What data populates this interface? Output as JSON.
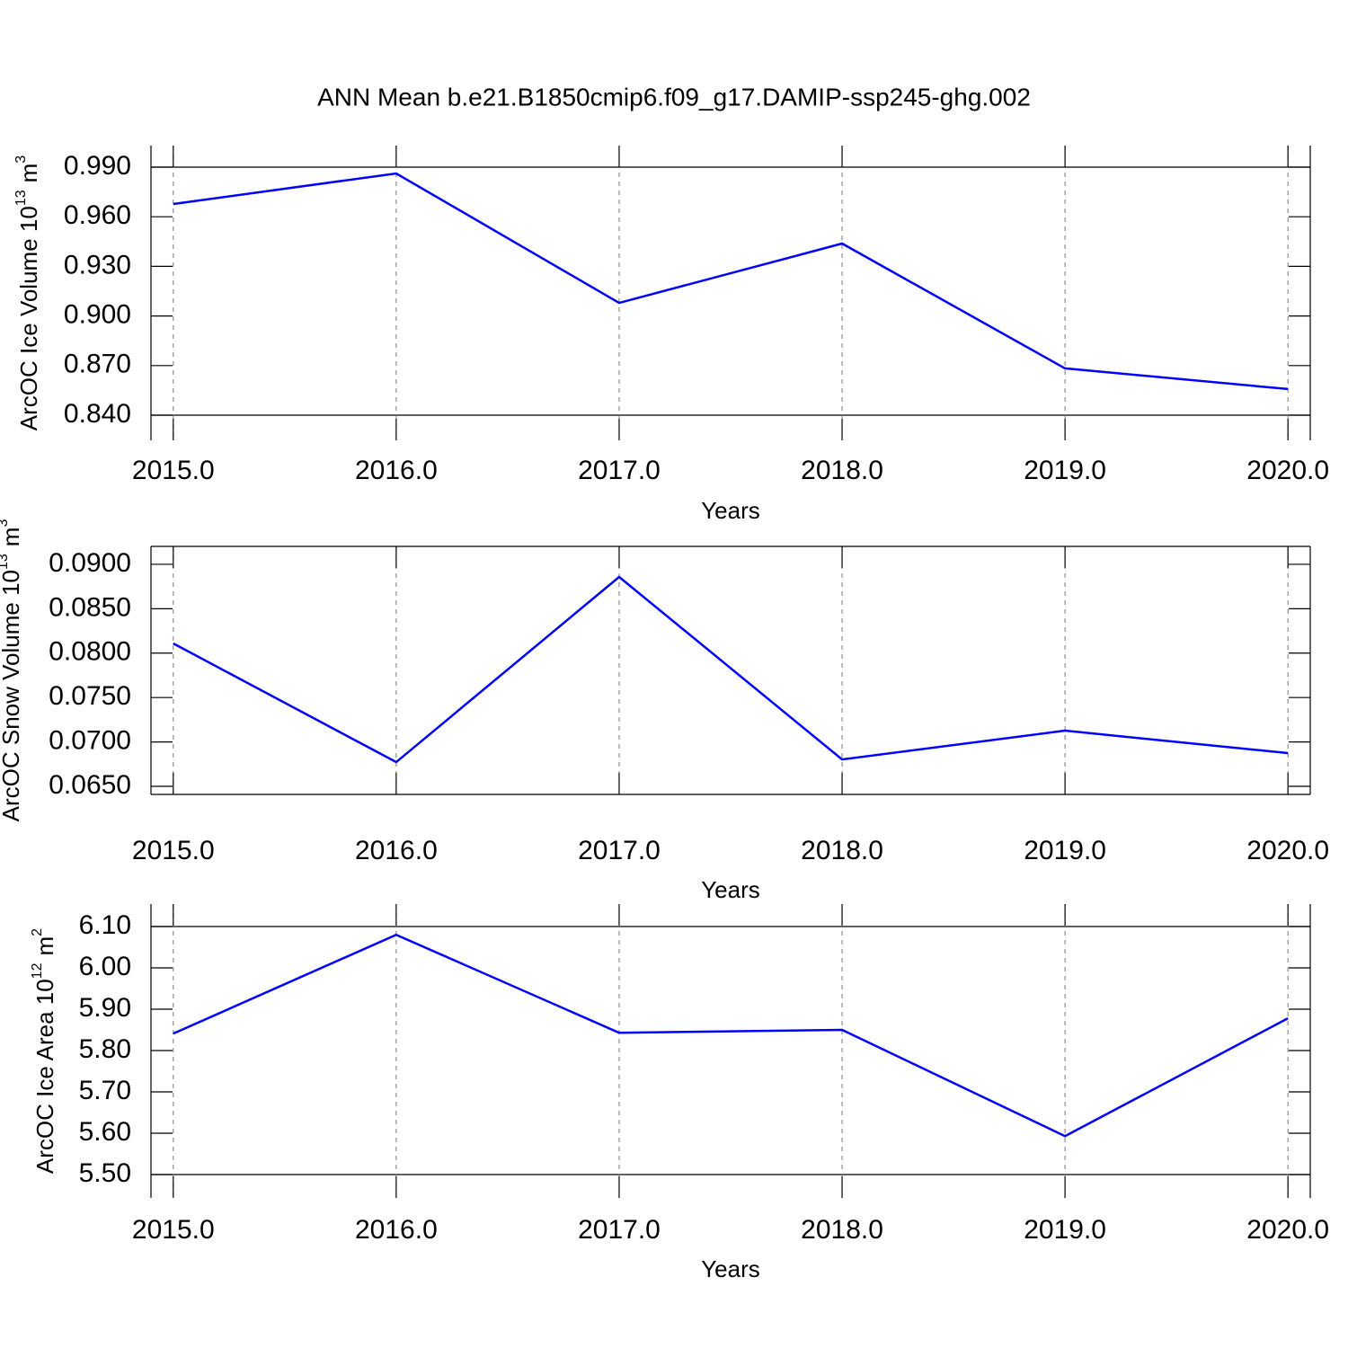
{
  "title": "ANN Mean b.e21.B1850cmip6.f09_g17.DAMIP-ssp245-ghg.002",
  "chart_data": [
    {
      "type": "line",
      "ylabel": "ArcOC Ice Volume 10",
      "ylabel_exp": "13",
      "yunit": "m",
      "yunit_exp": "3",
      "xlabel": "Years",
      "x": [
        2015,
        2016,
        2017,
        2018,
        2019,
        2020
      ],
      "values": [
        0.9677,
        0.9862,
        0.9079,
        0.9438,
        0.8683,
        0.8558
      ],
      "color": "#0000ff",
      "xlim": [
        2014.9,
        2020.1
      ],
      "xticks": [
        {
          "value": 2015,
          "label": "2015.0"
        },
        {
          "value": 2016,
          "label": "2016.0"
        },
        {
          "value": 2017,
          "label": "2017.0"
        },
        {
          "value": 2018,
          "label": "2018.0"
        },
        {
          "value": 2019,
          "label": "2019.0"
        },
        {
          "value": 2020,
          "label": "2020.0"
        }
      ],
      "ylim": [
        0.84,
        0.99
      ],
      "yticks": [
        {
          "value": 0.84,
          "label": "0.840"
        },
        {
          "value": 0.87,
          "label": "0.870"
        },
        {
          "value": 0.9,
          "label": "0.900"
        },
        {
          "value": 0.93,
          "label": "0.930"
        },
        {
          "value": 0.96,
          "label": "0.960"
        },
        {
          "value": 0.99,
          "label": "0.990"
        }
      ],
      "grid": true
    },
    {
      "type": "line",
      "ylabel": "ArcOC Snow Volume 10",
      "ylabel_exp": "13",
      "yunit": "m",
      "yunit_exp": "3",
      "xlabel": "Years",
      "x": [
        2015,
        2016,
        2017,
        2018,
        2019,
        2020
      ],
      "values": [
        0.08109,
        0.06773,
        0.08858,
        0.06803,
        0.07127,
        0.06874
      ],
      "color": "#0000ff",
      "xlim": [
        2014.9,
        2020.1
      ],
      "xticks": [
        {
          "value": 2015,
          "label": "2015.0"
        },
        {
          "value": 2016,
          "label": "2016.0"
        },
        {
          "value": 2017,
          "label": "2017.0"
        },
        {
          "value": 2018,
          "label": "2018.0"
        },
        {
          "value": 2019,
          "label": "2019.0"
        },
        {
          "value": 2020,
          "label": "2020.0"
        }
      ],
      "ylim": [
        0.06409,
        0.09202
      ],
      "yticks": [
        {
          "value": 0.065,
          "label": "0.0650"
        },
        {
          "value": 0.07,
          "label": "0.0700"
        },
        {
          "value": 0.075,
          "label": "0.0750"
        },
        {
          "value": 0.08,
          "label": "0.0800"
        },
        {
          "value": 0.085,
          "label": "0.0850"
        },
        {
          "value": 0.09,
          "label": "0.0900"
        }
      ],
      "grid": true
    },
    {
      "type": "line",
      "ylabel": "ArcOC Ice Area 10",
      "ylabel_exp": "12",
      "yunit": "m",
      "yunit_exp": "2",
      "xlabel": "Years",
      "x": [
        2015,
        2016,
        2017,
        2018,
        2019,
        2020
      ],
      "values": [
        5.841,
        6.08,
        5.843,
        5.85,
        5.593,
        5.878
      ],
      "color": "#0000ff",
      "xlim": [
        2014.9,
        2020.1
      ],
      "xticks": [
        {
          "value": 2015,
          "label": "2015.0"
        },
        {
          "value": 2016,
          "label": "2016.0"
        },
        {
          "value": 2017,
          "label": "2017.0"
        },
        {
          "value": 2018,
          "label": "2018.0"
        },
        {
          "value": 2019,
          "label": "2019.0"
        },
        {
          "value": 2020,
          "label": "2020.0"
        }
      ],
      "ylim": [
        5.5,
        6.1
      ],
      "yticks": [
        {
          "value": 5.5,
          "label": "5.50"
        },
        {
          "value": 5.6,
          "label": "5.60"
        },
        {
          "value": 5.7,
          "label": "5.70"
        },
        {
          "value": 5.8,
          "label": "5.80"
        },
        {
          "value": 5.9,
          "label": "5.90"
        },
        {
          "value": 6.0,
          "label": "6.00"
        },
        {
          "value": 6.1,
          "label": "6.10"
        }
      ],
      "grid": true
    }
  ]
}
